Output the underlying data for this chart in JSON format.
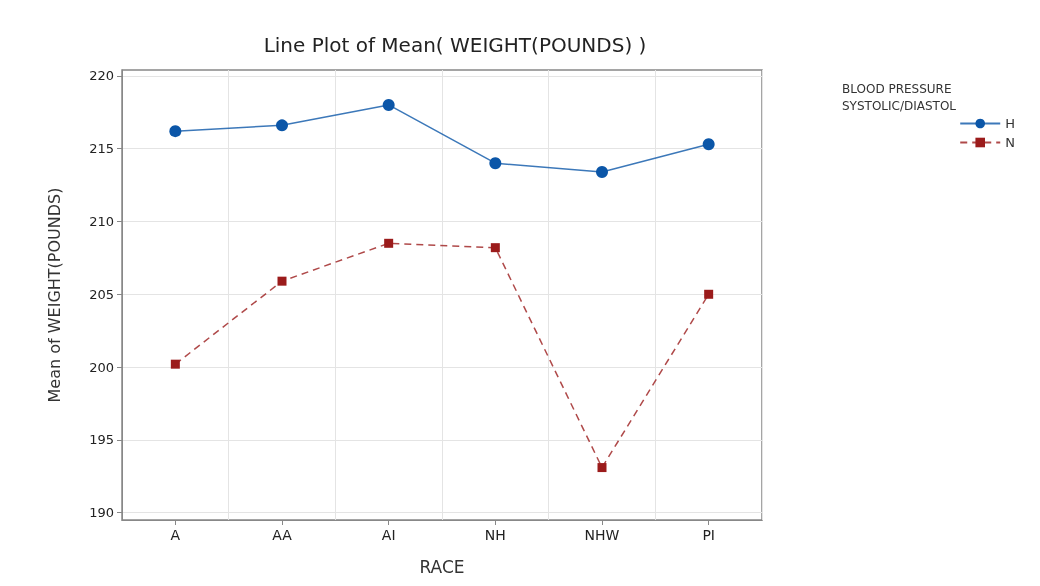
{
  "chart_data": {
    "type": "line",
    "title": "Line Plot of Mean( WEIGHT(POUNDS) )",
    "xlabel": "RACE",
    "ylabel": "Mean of WEIGHT(POUNDS)",
    "legend_title": "BLOOD PRESSURE SYSTOLIC/DIASTOL",
    "categories": [
      "A",
      "AA",
      "AI",
      "NH",
      "NHW",
      "PI"
    ],
    "series": [
      {
        "name": "H",
        "color": "#0b56a8",
        "marker": "circle",
        "line_style": "solid",
        "values": [
          216.2,
          216.6,
          218.0,
          214.0,
          213.4,
          215.3
        ]
      },
      {
        "name": "N",
        "color": "#9b1b1b",
        "marker": "square",
        "line_style": "dashed",
        "values": [
          200.2,
          205.9,
          208.5,
          208.2,
          193.1,
          205.0
        ]
      }
    ],
    "ylim": [
      189.5,
      220.4
    ],
    "yticks": [
      190,
      195,
      200,
      205,
      210,
      215,
      220
    ],
    "grid": true,
    "legend": "top right"
  }
}
